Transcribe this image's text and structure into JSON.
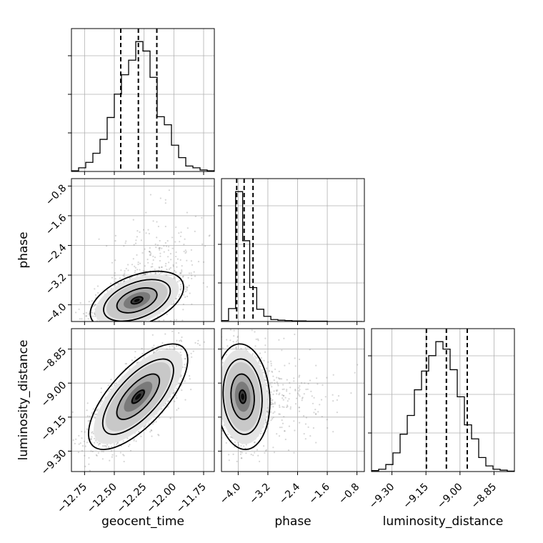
{
  "chart_data": {
    "type": "corner",
    "parameters": [
      "geocent_time",
      "phase",
      "luminosity_distance"
    ],
    "axis_labels": {
      "geocent_time": "geocent_time",
      "phase": "phase",
      "luminosity_distance": "luminosity_distance"
    },
    "ranges": {
      "geocent_time": [
        -12.86,
        -11.66
      ],
      "phase": [
        -4.45,
        -0.6
      ],
      "luminosity_distance": [
        -9.39,
        -8.76
      ]
    },
    "ticks": {
      "geocent_time": [
        {
          "v": -12.75,
          "label": "−12.75"
        },
        {
          "v": -12.5,
          "label": "−12.50"
        },
        {
          "v": -12.25,
          "label": "−12.25"
        },
        {
          "v": -12.0,
          "label": "−12.00"
        },
        {
          "v": -11.75,
          "label": "−11.75"
        }
      ],
      "phase": [
        {
          "v": -4.0,
          "label": "−4.0"
        },
        {
          "v": -3.2,
          "label": "−3.2"
        },
        {
          "v": -2.4,
          "label": "−2.4"
        },
        {
          "v": -1.6,
          "label": "−1.6"
        },
        {
          "v": -0.8,
          "label": "−0.8"
        }
      ],
      "luminosity_distance": [
        {
          "v": -9.3,
          "label": "−9.30"
        },
        {
          "v": -9.15,
          "label": "−9.15"
        },
        {
          "v": -9.0,
          "label": "−9.00"
        },
        {
          "v": -8.85,
          "label": "−8.85"
        }
      ]
    },
    "histograms": {
      "geocent_time": {
        "edges_start": -12.86,
        "bin_width": 0.06,
        "counts": [
          2,
          10,
          25,
          50,
          88,
          148,
          212,
          265,
          305,
          356,
          330,
          258,
          150,
          128,
          72,
          38,
          15,
          10,
          4,
          2
        ],
        "quantiles": [
          -12.446,
          -12.298,
          -12.143
        ]
      },
      "phase": {
        "edges_start": -4.45,
        "bin_width": 0.19,
        "counts": [
          3,
          40,
          402,
          250,
          105,
          38,
          16,
          6,
          4,
          3,
          2,
          2,
          1,
          1,
          1,
          0,
          0,
          0,
          0,
          0
        ],
        "quantiles": [
          -4.04,
          -3.84,
          -3.6
        ]
      },
      "luminosity_distance": {
        "edges_start": -9.39,
        "bin_width": 0.0315,
        "counts": [
          2,
          5,
          15,
          40,
          80,
          120,
          175,
          215,
          248,
          278,
          262,
          218,
          160,
          100,
          70,
          30,
          12,
          5,
          3,
          1
        ],
        "quantiles": [
          -9.148,
          -9.06,
          -8.968
        ]
      }
    },
    "densities": [
      {
        "x": "geocent_time",
        "y": "phase",
        "mean": [
          -12.31,
          -3.88
        ],
        "sd": [
          0.16,
          0.32
        ],
        "rho": 0.45
      },
      {
        "x": "geocent_time",
        "y": "luminosity_distance",
        "mean": [
          -12.3,
          -9.06
        ],
        "sd": [
          0.17,
          0.095
        ],
        "rho": 0.7
      },
      {
        "x": "phase",
        "y": "luminosity_distance",
        "mean": [
          -3.88,
          -9.06
        ],
        "sd": [
          0.3,
          0.095
        ],
        "rho": -0.1
      }
    ],
    "grid": true,
    "quantiles_shown": [
      0.16,
      0.5,
      0.84
    ]
  }
}
